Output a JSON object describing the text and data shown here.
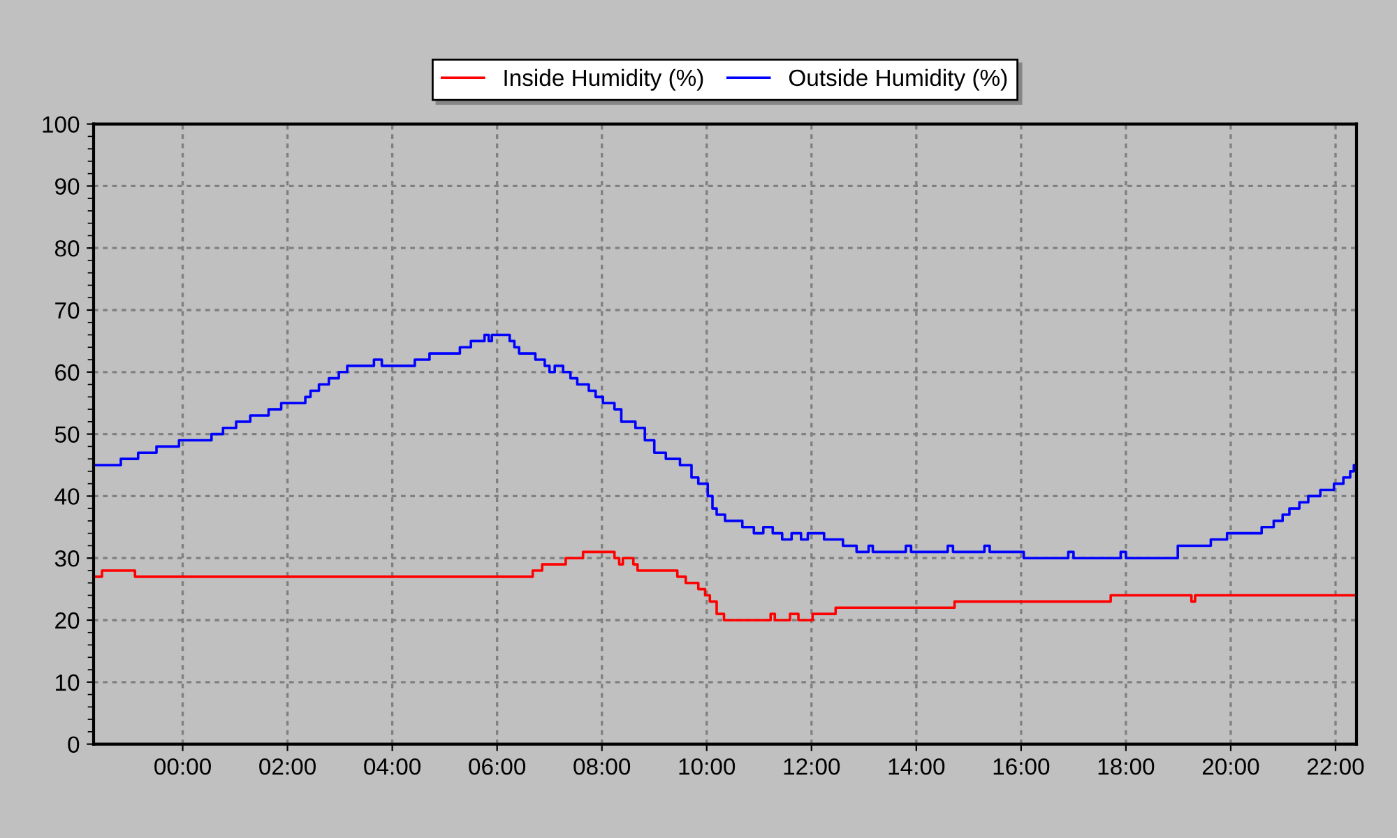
{
  "chart_data": {
    "type": "step",
    "series": [
      {
        "name": "Inside Humidity (%)",
        "color": "#ff0000",
        "x": [
          -1.7,
          -1.54,
          -0.91,
          6.68,
          6.86,
          7.31,
          7.64,
          8.24,
          8.33,
          8.4,
          8.6,
          8.68,
          9.44,
          9.6,
          9.84,
          9.97,
          10.06,
          10.19,
          10.33,
          11.22,
          11.3,
          11.59,
          11.75,
          12.02,
          12.46,
          14.73,
          17.71,
          19.25,
          19.32,
          22.4
        ],
        "values": [
          27,
          28,
          27,
          28,
          29,
          30,
          31,
          30,
          29,
          30,
          29,
          28,
          27,
          26,
          25,
          24,
          23,
          21,
          20,
          21,
          20,
          21,
          20,
          21,
          22,
          23,
          24,
          23,
          24,
          24
        ]
      },
      {
        "name": "Outside Humidity (%)",
        "color": "#0000ff",
        "x": [
          -1.7,
          -1.18,
          -0.85,
          -0.5,
          -0.07,
          0.55,
          0.77,
          1.02,
          1.29,
          1.64,
          1.88,
          2.34,
          2.44,
          2.6,
          2.79,
          2.98,
          3.14,
          3.65,
          3.8,
          4.43,
          4.71,
          5.29,
          5.5,
          5.76,
          5.84,
          5.9,
          6.24,
          6.33,
          6.42,
          6.73,
          6.91,
          7.0,
          7.1,
          7.26,
          7.4,
          7.53,
          7.75,
          7.88,
          8.02,
          8.24,
          8.37,
          8.64,
          8.82,
          9.0,
          9.22,
          9.49,
          9.71,
          9.84,
          10.02,
          10.11,
          10.19,
          10.35,
          10.68,
          10.9,
          11.08,
          11.26,
          11.44,
          11.62,
          11.8,
          11.93,
          12.24,
          12.6,
          12.86,
          13.09,
          13.17,
          13.8,
          13.9,
          14.6,
          14.7,
          15.3,
          15.4,
          16.05,
          16.9,
          17.0,
          17.9,
          18.0,
          18.99,
          19.62,
          19.93,
          20.59,
          20.82,
          20.99,
          21.12,
          21.31,
          21.48,
          21.71,
          21.97,
          22.15,
          22.28,
          22.35,
          22.4
        ],
        "values": [
          45,
          46,
          47,
          48,
          49,
          50,
          51,
          52,
          53,
          54,
          55,
          56,
          57,
          58,
          59,
          60,
          61,
          62,
          61,
          62,
          63,
          64,
          65,
          66,
          65,
          66,
          65,
          64,
          63,
          62,
          61,
          60,
          61,
          60,
          59,
          58,
          57,
          56,
          55,
          54,
          52,
          51,
          49,
          47,
          46,
          45,
          43,
          42,
          40,
          38,
          37,
          36,
          35,
          34,
          35,
          34,
          33,
          34,
          33,
          34,
          33,
          32,
          31,
          32,
          31,
          32,
          31,
          32,
          31,
          32,
          31,
          30,
          31,
          30,
          31,
          30,
          32,
          33,
          34,
          35,
          36,
          37,
          38,
          39,
          40,
          41,
          42,
          43,
          44,
          45,
          45
        ]
      }
    ],
    "xlim": [
      -1.7,
      22.4
    ],
    "xticks": [
      {
        "value": 0,
        "label": "00:00"
      },
      {
        "value": 2,
        "label": "02:00"
      },
      {
        "value": 4,
        "label": "04:00"
      },
      {
        "value": 6,
        "label": "06:00"
      },
      {
        "value": 8,
        "label": "08:00"
      },
      {
        "value": 10,
        "label": "10:00"
      },
      {
        "value": 12,
        "label": "12:00"
      },
      {
        "value": 14,
        "label": "14:00"
      },
      {
        "value": 16,
        "label": "16:00"
      },
      {
        "value": 18,
        "label": "18:00"
      },
      {
        "value": 20,
        "label": "20:00"
      },
      {
        "value": 22,
        "label": "22:00"
      }
    ],
    "ylim": [
      0,
      100
    ],
    "yticks": [
      0,
      {
        "value": 2,
        "label": null
      },
      {
        "value": 4,
        "label": null
      },
      {
        "value": 6,
        "label": null
      },
      {
        "value": 8,
        "label": null
      },
      10,
      {
        "value": 12,
        "label": null
      },
      {
        "value": 14,
        "label": null
      },
      {
        "value": 16,
        "label": null
      },
      {
        "value": 18,
        "label": null
      },
      20,
      {
        "value": 22,
        "label": null
      },
      {
        "value": 24,
        "label": null
      },
      {
        "value": 26,
        "label": null
      },
      {
        "value": 28,
        "label": null
      },
      30,
      {
        "value": 32,
        "label": null
      },
      {
        "value": 34,
        "label": null
      },
      {
        "value": 36,
        "label": null
      },
      {
        "value": 38,
        "label": null
      },
      40,
      {
        "value": 42,
        "label": null
      },
      {
        "value": 44,
        "label": null
      },
      {
        "value": 46,
        "label": null
      },
      {
        "value": 48,
        "label": null
      },
      50,
      {
        "value": 52,
        "label": null
      },
      {
        "value": 54,
        "label": null
      },
      {
        "value": 56,
        "label": null
      },
      {
        "value": 58,
        "label": null
      },
      60,
      {
        "value": 62,
        "label": null
      },
      {
        "value": 64,
        "label": null
      },
      {
        "value": 66,
        "label": null
      },
      {
        "value": 68,
        "label": null
      },
      70,
      {
        "value": 72,
        "label": null
      },
      {
        "value": 74,
        "label": null
      },
      {
        "value": 76,
        "label": null
      },
      {
        "value": 78,
        "label": null
      },
      80,
      {
        "value": 82,
        "label": null
      },
      {
        "value": 84,
        "label": null
      },
      {
        "value": 86,
        "label": null
      },
      {
        "value": 88,
        "label": null
      },
      90,
      {
        "value": 92,
        "label": null
      },
      {
        "value": 94,
        "label": null
      },
      {
        "value": 96,
        "label": null
      },
      {
        "value": 98,
        "label": null
      },
      100
    ],
    "grid": true,
    "legend": "top",
    "line_style": "solid",
    "marker": "none"
  }
}
